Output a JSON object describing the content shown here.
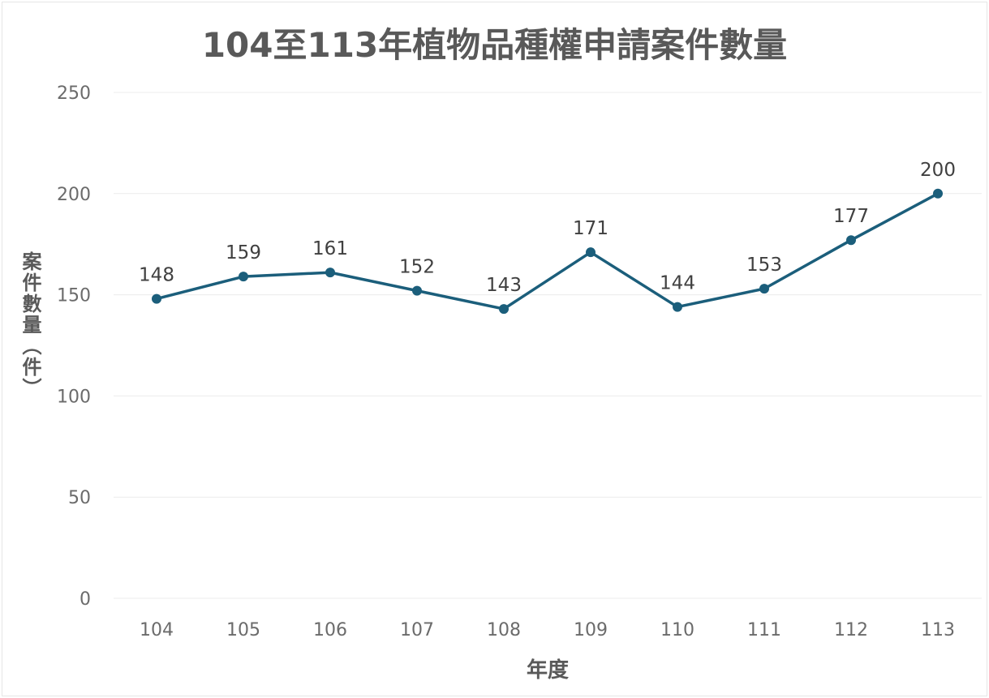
{
  "chart_data": {
    "type": "line",
    "title": "104至113年植物品種權申請案件數量",
    "xlabel": "年度",
    "ylabel": "案件數量（件）",
    "categories": [
      "104",
      "105",
      "106",
      "107",
      "108",
      "109",
      "110",
      "111",
      "112",
      "113"
    ],
    "series": [
      {
        "name": "案件數量",
        "values": [
          148,
          159,
          161,
          152,
          143,
          171,
          144,
          153,
          177,
          200
        ]
      }
    ],
    "ylim": [
      0,
      250
    ],
    "yticks": [
      0,
      50,
      100,
      150,
      200,
      250
    ],
    "grid": true,
    "data_labels": true,
    "line_color": "#1b5e7b"
  }
}
